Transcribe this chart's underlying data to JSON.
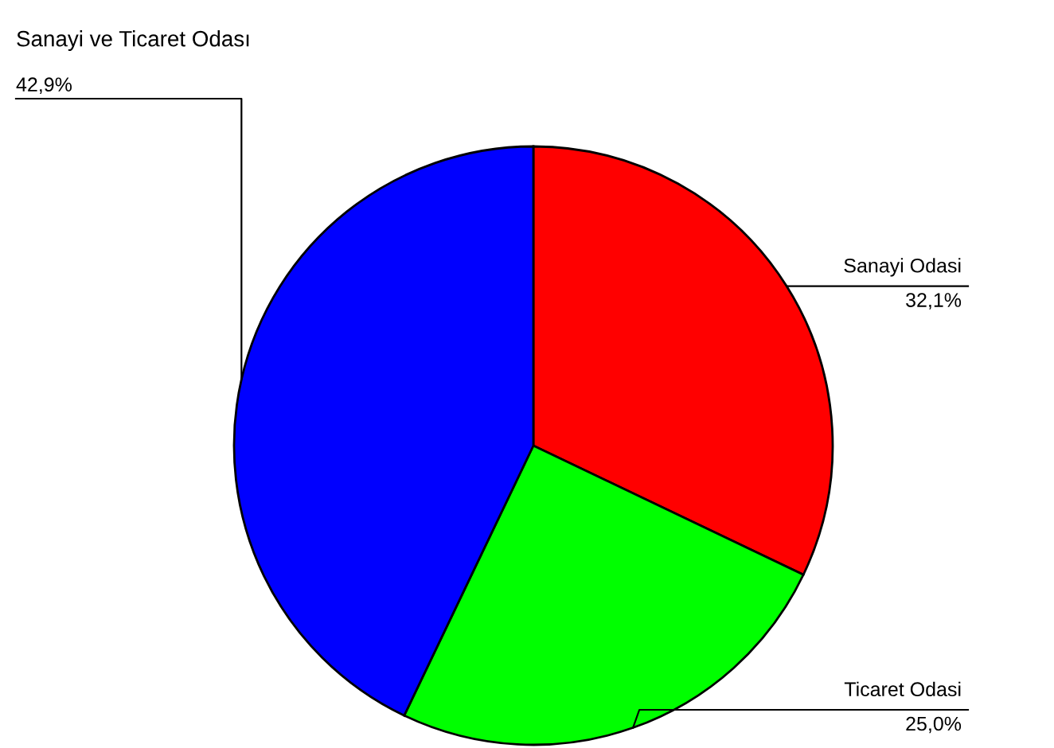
{
  "chart_data": {
    "type": "pie",
    "categories": [
      "Sanayi Odasi",
      "Ticaret Odasi",
      "Sanayi ve Ticaret Odası"
    ],
    "values": [
      32.1,
      25.0,
      42.9
    ],
    "value_labels": [
      "32,1%",
      "25,0%",
      "42,9%"
    ],
    "colors": [
      "#ff0000",
      "#00ff00",
      "#0000ff"
    ],
    "legend": false
  }
}
